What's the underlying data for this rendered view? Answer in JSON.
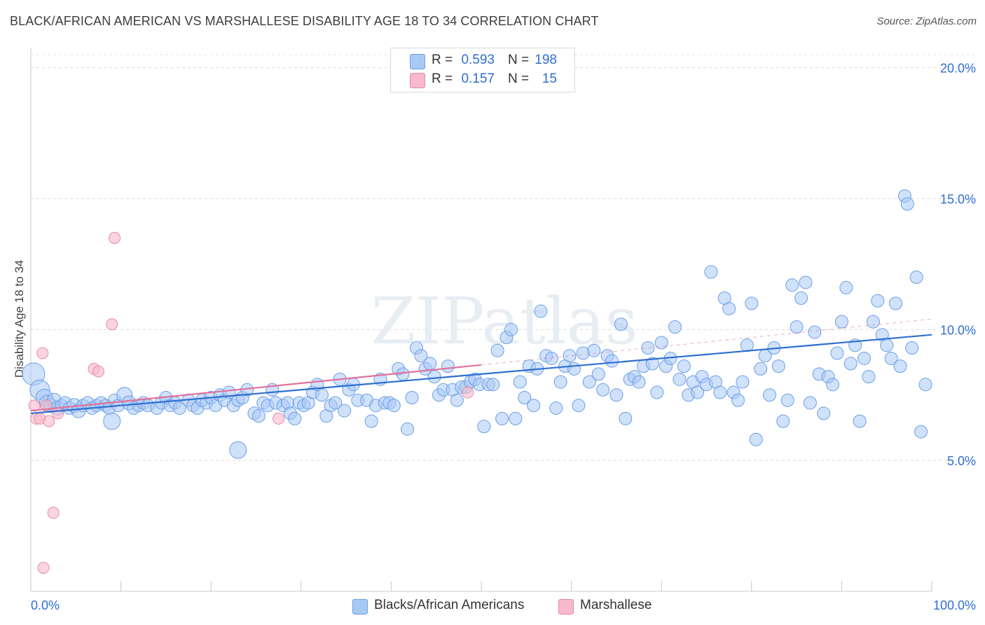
{
  "title": "BLACK/AFRICAN AMERICAN VS MARSHALLESE DISABILITY AGE 18 TO 34 CORRELATION CHART",
  "source": "Source: ZipAtlas.com",
  "watermark": "ZIPatlas",
  "colors": {
    "blue_fill": "#a9c9f5",
    "blue_stroke": "#6a9fe6",
    "blue_line": "#2f6fd0",
    "pink_fill": "#f7b9cb",
    "pink_stroke": "#e58aa6",
    "pink_line": "#e0719a",
    "value_text": "#2f6fd0"
  },
  "legend_top": [
    {
      "r_label": "R =",
      "r_value": "0.593",
      "n_label": "N =",
      "n_value": "198",
      "color": "#a9c9f5"
    },
    {
      "r_label": "R =",
      "r_value": "0.157",
      "n_label": "N =",
      "n_value": "15",
      "color": "#f7b9cb"
    }
  ],
  "legend_bottom": [
    {
      "label": "Blacks/African Americans",
      "color": "#a9c9f5"
    },
    {
      "label": "Marshallese",
      "color": "#f7b9cb"
    }
  ],
  "chart_data": {
    "type": "scatter",
    "xlabel": "",
    "ylabel": "Disability Age 18 to 34",
    "xlim": [
      0,
      100
    ],
    "ylim": [
      0,
      20.5
    ],
    "x_tick_labels": [
      {
        "value": 0,
        "label": "0.0%"
      },
      {
        "value": 100,
        "label": "100.0%"
      }
    ],
    "y_tick_labels": [
      {
        "value": 5,
        "label": "5.0%"
      },
      {
        "value": 10,
        "label": "10.0%"
      },
      {
        "value": 15,
        "label": "15.0%"
      },
      {
        "value": 20,
        "label": "20.0%"
      }
    ],
    "series": [
      {
        "name": "Blacks/African Americans",
        "r": 0.593,
        "n": 198,
        "trend": {
          "x": [
            0,
            100
          ],
          "y": [
            6.8,
            9.8
          ],
          "solid_to": 100
        },
        "points": [
          [
            0.3,
            8.3,
            16
          ],
          [
            1.0,
            7.7,
            14
          ],
          [
            1.5,
            7.4,
            12
          ],
          [
            1.8,
            7.2,
            11
          ],
          [
            2.2,
            7.1,
            10
          ],
          [
            2.6,
            7.3,
            10
          ],
          [
            3.0,
            7.0,
            10
          ],
          [
            3.4,
            7.1,
            9
          ],
          [
            3.8,
            7.2,
            9
          ],
          [
            4.3,
            7.0,
            9
          ],
          [
            4.8,
            7.1,
            10
          ],
          [
            5.3,
            6.9,
            10
          ],
          [
            5.8,
            7.1,
            9
          ],
          [
            6.3,
            7.2,
            9
          ],
          [
            6.8,
            7.0,
            9
          ],
          [
            7.3,
            7.1,
            9
          ],
          [
            7.8,
            7.2,
            9
          ],
          [
            8.3,
            7.1,
            9
          ],
          [
            8.7,
            7.0,
            9
          ],
          [
            9.3,
            7.3,
            9
          ],
          [
            9.7,
            7.1,
            9
          ],
          [
            10.4,
            7.5,
            11
          ],
          [
            10.9,
            7.2,
            10
          ],
          [
            11.4,
            7.0,
            9
          ],
          [
            12.0,
            7.1,
            9
          ],
          [
            12.5,
            7.2,
            9
          ],
          [
            13.0,
            7.1,
            9
          ],
          [
            14.0,
            7.0,
            9
          ],
          [
            14.5,
            7.2,
            9
          ],
          [
            15.0,
            7.4,
            9
          ],
          [
            15.5,
            7.1,
            9
          ],
          [
            16.0,
            7.2,
            9
          ],
          [
            16.5,
            7.0,
            9
          ],
          [
            17.5,
            7.3,
            9
          ],
          [
            18.0,
            7.1,
            9
          ],
          [
            18.5,
            7.0,
            9
          ],
          [
            19.0,
            7.3,
            9
          ],
          [
            19.5,
            7.2,
            9
          ],
          [
            20.0,
            7.4,
            9
          ],
          [
            20.5,
            7.1,
            9
          ],
          [
            21.0,
            7.5,
            9
          ],
          [
            21.5,
            7.3,
            9
          ],
          [
            22.0,
            7.6,
            9
          ],
          [
            22.5,
            7.1,
            9
          ],
          [
            23.0,
            7.3,
            9
          ],
          [
            23.5,
            7.4,
            9
          ],
          [
            24.0,
            7.7,
            9
          ],
          [
            24.8,
            6.8,
            9
          ],
          [
            25.3,
            6.7,
            9
          ],
          [
            25.8,
            7.2,
            9
          ],
          [
            26.3,
            7.1,
            9
          ],
          [
            26.8,
            7.7,
            9
          ],
          [
            27.2,
            7.2,
            9
          ],
          [
            28.0,
            7.1,
            9
          ],
          [
            28.5,
            7.2,
            9
          ],
          [
            28.8,
            6.8,
            9
          ],
          [
            29.3,
            6.6,
            9
          ],
          [
            29.8,
            7.2,
            9
          ],
          [
            30.3,
            7.1,
            9
          ],
          [
            30.8,
            7.2,
            9
          ],
          [
            31.3,
            7.6,
            9
          ],
          [
            31.8,
            7.9,
            9
          ],
          [
            32.3,
            7.5,
            9
          ],
          [
            32.8,
            6.7,
            9
          ],
          [
            33.3,
            7.1,
            9
          ],
          [
            33.8,
            7.2,
            9
          ],
          [
            34.3,
            8.1,
            9
          ],
          [
            34.8,
            6.9,
            9
          ],
          [
            35.3,
            7.7,
            9
          ],
          [
            35.8,
            7.9,
            9
          ],
          [
            36.3,
            7.3,
            9
          ],
          [
            37.3,
            7.3,
            9
          ],
          [
            37.8,
            6.5,
            9
          ],
          [
            38.3,
            7.1,
            9
          ],
          [
            38.8,
            8.1,
            9
          ],
          [
            39.3,
            7.2,
            9
          ],
          [
            39.8,
            7.2,
            9
          ],
          [
            40.3,
            7.1,
            9
          ],
          [
            40.8,
            8.5,
            9
          ],
          [
            41.3,
            8.3,
            9
          ],
          [
            41.8,
            6.2,
            9
          ],
          [
            42.3,
            7.4,
            9
          ],
          [
            42.8,
            9.3,
            9
          ],
          [
            43.3,
            9.0,
            9
          ],
          [
            43.8,
            8.5,
            9
          ],
          [
            44.3,
            8.7,
            9
          ],
          [
            44.8,
            8.2,
            9
          ],
          [
            45.3,
            7.5,
            9
          ],
          [
            45.8,
            7.7,
            9
          ],
          [
            46.3,
            8.6,
            9
          ],
          [
            46.8,
            7.7,
            9
          ],
          [
            47.3,
            7.3,
            9
          ],
          [
            47.8,
            7.8,
            9
          ],
          [
            48.3,
            7.8,
            9
          ],
          [
            48.8,
            8.0,
            9
          ],
          [
            49.3,
            8.1,
            9
          ],
          [
            49.8,
            7.9,
            9
          ],
          [
            50.3,
            6.3,
            9
          ],
          [
            50.8,
            7.9,
            9
          ],
          [
            51.3,
            7.9,
            9
          ],
          [
            51.8,
            9.2,
            9
          ],
          [
            52.3,
            6.6,
            9
          ],
          [
            52.8,
            9.7,
            9
          ],
          [
            53.3,
            10.0,
            9
          ],
          [
            53.8,
            6.6,
            9
          ],
          [
            54.3,
            8.0,
            9
          ],
          [
            54.8,
            7.4,
            9
          ],
          [
            55.3,
            8.6,
            9
          ],
          [
            55.8,
            7.1,
            9
          ],
          [
            56.2,
            8.5,
            9
          ],
          [
            56.6,
            10.7,
            9
          ],
          [
            57.2,
            9.0,
            9
          ],
          [
            57.8,
            8.9,
            9
          ],
          [
            58.3,
            7.0,
            9
          ],
          [
            58.8,
            8.0,
            9
          ],
          [
            59.3,
            8.6,
            9
          ],
          [
            59.8,
            9.0,
            9
          ],
          [
            60.3,
            8.5,
            9
          ],
          [
            60.8,
            7.1,
            9
          ],
          [
            61.3,
            9.1,
            9
          ],
          [
            62.0,
            8.0,
            9
          ],
          [
            62.5,
            9.2,
            9
          ],
          [
            63.0,
            8.3,
            9
          ],
          [
            63.5,
            7.7,
            9
          ],
          [
            64.0,
            9.0,
            9
          ],
          [
            64.5,
            8.8,
            9
          ],
          [
            65.0,
            7.5,
            9
          ],
          [
            65.5,
            10.2,
            9
          ],
          [
            66.0,
            6.6,
            9
          ],
          [
            66.5,
            8.1,
            9
          ],
          [
            67.0,
            8.2,
            9
          ],
          [
            67.5,
            8.0,
            9
          ],
          [
            68.0,
            8.6,
            9
          ],
          [
            68.5,
            9.3,
            9
          ],
          [
            69.0,
            8.7,
            9
          ],
          [
            69.5,
            7.6,
            9
          ],
          [
            70.0,
            9.5,
            9
          ],
          [
            70.5,
            8.6,
            9
          ],
          [
            71.0,
            8.9,
            9
          ],
          [
            71.5,
            10.1,
            9
          ],
          [
            72.0,
            8.1,
            9
          ],
          [
            72.5,
            8.6,
            9
          ],
          [
            73.0,
            7.5,
            9
          ],
          [
            73.5,
            8.0,
            9
          ],
          [
            74.0,
            7.6,
            9
          ],
          [
            74.5,
            8.2,
            9
          ],
          [
            75.0,
            7.9,
            9
          ],
          [
            75.5,
            12.2,
            9
          ],
          [
            76.0,
            8.0,
            9
          ],
          [
            76.5,
            7.6,
            9
          ],
          [
            77.0,
            11.2,
            9
          ],
          [
            77.5,
            10.8,
            9
          ],
          [
            78.0,
            7.6,
            9
          ],
          [
            78.5,
            7.3,
            9
          ],
          [
            79.0,
            8.0,
            9
          ],
          [
            79.5,
            9.4,
            9
          ],
          [
            80.0,
            11.0,
            9
          ],
          [
            80.5,
            5.8,
            9
          ],
          [
            81.0,
            8.5,
            9
          ],
          [
            81.5,
            9.0,
            9
          ],
          [
            82.0,
            7.5,
            9
          ],
          [
            82.5,
            9.3,
            9
          ],
          [
            83.0,
            8.6,
            9
          ],
          [
            83.5,
            6.5,
            9
          ],
          [
            84.0,
            7.3,
            9
          ],
          [
            84.5,
            11.7,
            9
          ],
          [
            85.0,
            10.1,
            9
          ],
          [
            85.5,
            11.2,
            9
          ],
          [
            86.0,
            11.8,
            9
          ],
          [
            86.5,
            7.2,
            9
          ],
          [
            87.0,
            9.9,
            9
          ],
          [
            87.5,
            8.3,
            9
          ],
          [
            88.0,
            6.8,
            9
          ],
          [
            88.5,
            8.2,
            9
          ],
          [
            89.0,
            7.9,
            9
          ],
          [
            89.5,
            9.1,
            9
          ],
          [
            90.0,
            10.3,
            9
          ],
          [
            90.5,
            11.6,
            9
          ],
          [
            91.0,
            8.7,
            9
          ],
          [
            91.5,
            9.4,
            9
          ],
          [
            92.0,
            6.5,
            9
          ],
          [
            92.5,
            8.9,
            9
          ],
          [
            93.0,
            8.2,
            9
          ],
          [
            93.5,
            10.3,
            9
          ],
          [
            94.0,
            11.1,
            9
          ],
          [
            94.5,
            9.8,
            9
          ],
          [
            95.0,
            9.4,
            9
          ],
          [
            95.5,
            8.9,
            9
          ],
          [
            96.0,
            11.0,
            9
          ],
          [
            96.5,
            8.6,
            9
          ],
          [
            97.0,
            15.1,
            9
          ],
          [
            97.3,
            14.8,
            9
          ],
          [
            97.8,
            9.3,
            9
          ],
          [
            98.3,
            12.0,
            9
          ],
          [
            98.8,
            6.1,
            9
          ],
          [
            99.3,
            7.9,
            9
          ],
          [
            9.0,
            6.5,
            12
          ],
          [
            23.0,
            5.4,
            12
          ]
        ]
      },
      {
        "name": "Marshallese",
        "r": 0.157,
        "n": 15,
        "trend": {
          "x": [
            0,
            100
          ],
          "y": [
            6.9,
            10.4
          ],
          "solid_to": 50
        },
        "points": [
          [
            0.4,
            7.1,
            8
          ],
          [
            0.6,
            6.6,
            8
          ],
          [
            1.0,
            6.6,
            8
          ],
          [
            1.3,
            9.1,
            8
          ],
          [
            1.7,
            7.1,
            8
          ],
          [
            2.0,
            6.5,
            8
          ],
          [
            3.0,
            6.8,
            8
          ],
          [
            7.0,
            8.5,
            8
          ],
          [
            7.5,
            8.4,
            8
          ],
          [
            9.3,
            13.5,
            8
          ],
          [
            9.0,
            10.2,
            8
          ],
          [
            2.5,
            3.0,
            8
          ],
          [
            1.4,
            0.9,
            8
          ],
          [
            27.5,
            6.6,
            8
          ],
          [
            48.5,
            7.6,
            8
          ]
        ]
      }
    ]
  }
}
